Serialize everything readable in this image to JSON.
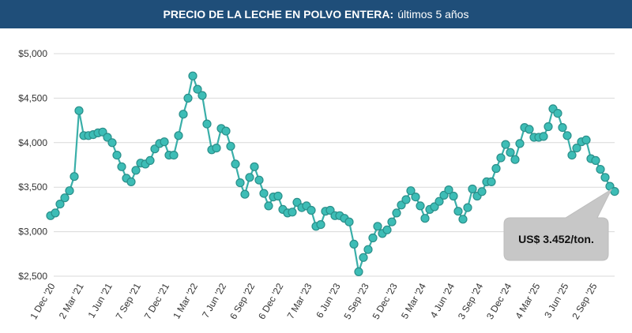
{
  "header": {
    "title_bold": "PRECIO DE LA LECHE EN POLVO ENTERA:",
    "title_rest": "últimos 5 años"
  },
  "colors": {
    "header_bg": "#1f4e79",
    "line": "#3aafa9",
    "marker": "#3dbdb6",
    "callout_bg": "#c7c7c7"
  },
  "callout": {
    "text": "US$ 3.452/ton."
  },
  "chart_data": {
    "type": "line",
    "title": "PRECIO DE LA LECHE EN POLVO ENTERA: últimos 5 años",
    "xlabel": "",
    "ylabel": "",
    "ylim": [
      2500,
      5000
    ],
    "y_ticks": [
      2500,
      3000,
      3500,
      4000,
      4500,
      5000
    ],
    "y_tick_labels": [
      "$2,500",
      "$3,000",
      "$3,500",
      "$4,000",
      "$4,500",
      "$5,000"
    ],
    "x_tick_labels": [
      "1 Dec '20",
      "2 Mar '21",
      "1 Jun '21",
      "7 Sep '21",
      "7 Dec '21",
      "1 Mar '22",
      "7 Jun '22",
      "6 Sep '22",
      "6 Dec '22",
      "7 Mar '23",
      "6 Jun '23",
      "5 Sep '23",
      "5 Dec '23",
      "5 Mar '24",
      "4 Jun '24",
      "3 Sep '24",
      "3 Dec '24",
      "4 Mar '25",
      "3 Jun '25",
      "2 Sep '25"
    ],
    "grid": true,
    "legend": "none",
    "series": [
      {
        "values": [
          3180,
          3210,
          3310,
          3380,
          3460,
          3620,
          4360,
          4080,
          4080,
          4090,
          4110,
          4120,
          4060,
          4000,
          3860,
          3730,
          3600,
          3560,
          3690,
          3770,
          3760,
          3800,
          3930,
          3990,
          4010,
          3860,
          3860,
          4080,
          4320,
          4500,
          4750,
          4600,
          4530,
          4210,
          3920,
          3940,
          4160,
          4130,
          3960,
          3760,
          3550,
          3420,
          3610,
          3730,
          3580,
          3430,
          3290,
          3390,
          3400,
          3250,
          3210,
          3220,
          3330,
          3270,
          3290,
          3240,
          3060,
          3080,
          3230,
          3240,
          3180,
          3180,
          3150,
          3110,
          2860,
          2550,
          2710,
          2800,
          2930,
          3060,
          2980,
          3020,
          3110,
          3210,
          3300,
          3360,
          3460,
          3390,
          3290,
          3150,
          3250,
          3280,
          3340,
          3410,
          3470,
          3400,
          3230,
          3140,
          3270,
          3480,
          3400,
          3450,
          3560,
          3560,
          3710,
          3830,
          3980,
          3890,
          3810,
          3990,
          4170,
          4150,
          4060,
          4060,
          4070,
          4180,
          4380,
          4330,
          4170,
          4080,
          3860,
          3940,
          4010,
          4030,
          3820,
          3800,
          3700,
          3610,
          3510,
          3452
        ]
      }
    ]
  }
}
